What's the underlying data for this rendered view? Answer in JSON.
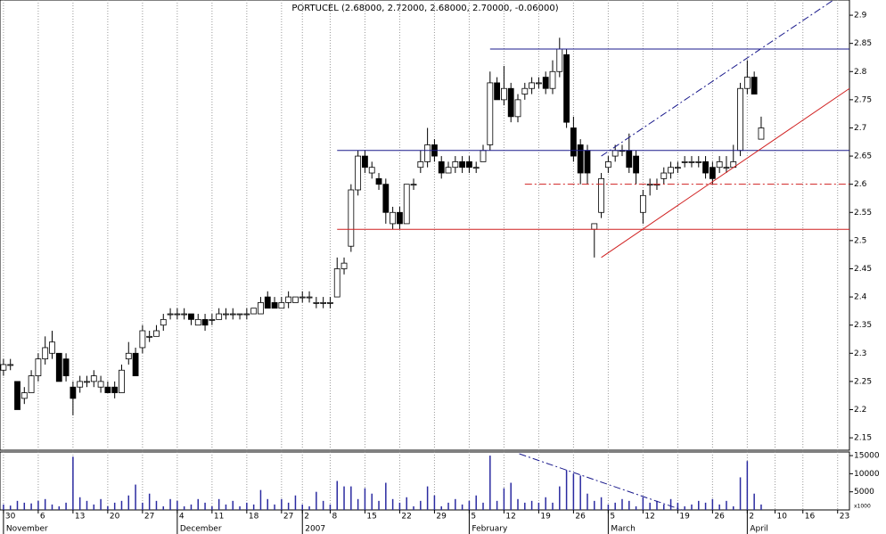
{
  "chart_data": {
    "type": "candlestick",
    "title": "PORTUCEL (2.68000, 2.72000, 2.68000, 2.70000, -0.06000)",
    "open": [
      2.27,
      2.28,
      2.25,
      2.22,
      2.23,
      2.26,
      2.29,
      2.3,
      2.3,
      2.29,
      2.24,
      2.24,
      2.25,
      2.25,
      2.24,
      2.24,
      2.24,
      2.23,
      2.29,
      2.3,
      2.31,
      2.33,
      2.33,
      2.35,
      2.37,
      2.37,
      2.37,
      2.37,
      2.35,
      2.36,
      2.36,
      2.36,
      2.37,
      2.37,
      2.37,
      2.37,
      2.37,
      2.37,
      2.4,
      2.39,
      2.38,
      2.39,
      2.39,
      2.4,
      2.4,
      2.39,
      2.39,
      2.39,
      2.4,
      2.45,
      2.49,
      2.59,
      2.65,
      2.62,
      2.61,
      2.6,
      2.53,
      2.55,
      2.53,
      2.6,
      2.63,
      2.64,
      2.67,
      2.64,
      2.62,
      2.63,
      2.64,
      2.64,
      2.63,
      2.64,
      2.67,
      2.78,
      2.75,
      2.77,
      2.72,
      2.76,
      2.77,
      2.78,
      2.79,
      2.77,
      2.8,
      2.83,
      2.7,
      2.67,
      2.66,
      2.52,
      2.55,
      2.63,
      2.65,
      2.66,
      2.66,
      2.65,
      2.55,
      2.6,
      2.6,
      2.61,
      2.62,
      2.63,
      2.64,
      2.64,
      2.64,
      2.64,
      2.63,
      2.63,
      2.63,
      2.63,
      2.66,
      2.77,
      2.79,
      2.68
    ],
    "high": [
      2.29,
      2.29,
      2.25,
      2.24,
      2.27,
      2.3,
      2.33,
      2.34,
      2.3,
      2.3,
      2.25,
      2.26,
      2.26,
      2.27,
      2.26,
      2.25,
      2.25,
      2.28,
      2.32,
      2.31,
      2.35,
      2.34,
      2.35,
      2.37,
      2.38,
      2.38,
      2.38,
      2.37,
      2.37,
      2.37,
      2.37,
      2.38,
      2.38,
      2.38,
      2.37,
      2.38,
      2.38,
      2.4,
      2.41,
      2.4,
      2.4,
      2.41,
      2.4,
      2.41,
      2.41,
      2.4,
      2.4,
      2.4,
      2.47,
      2.47,
      2.6,
      2.66,
      2.66,
      2.64,
      2.62,
      2.61,
      2.56,
      2.56,
      2.6,
      2.61,
      2.66,
      2.7,
      2.68,
      2.65,
      2.64,
      2.65,
      2.65,
      2.65,
      2.64,
      2.67,
      2.8,
      2.79,
      2.81,
      2.78,
      2.76,
      2.78,
      2.79,
      2.79,
      2.8,
      2.82,
      2.86,
      2.84,
      2.72,
      2.68,
      2.67,
      2.53,
      2.62,
      2.65,
      2.67,
      2.67,
      2.69,
      2.66,
      2.59,
      2.61,
      2.61,
      2.63,
      2.64,
      2.64,
      2.65,
      2.65,
      2.65,
      2.65,
      2.64,
      2.65,
      2.65,
      2.67,
      2.78,
      2.82,
      2.8,
      2.72
    ],
    "low": [
      2.26,
      2.27,
      2.2,
      2.21,
      2.23,
      2.25,
      2.28,
      2.29,
      2.25,
      2.25,
      2.19,
      2.23,
      2.24,
      2.24,
      2.23,
      2.23,
      2.22,
      2.23,
      2.28,
      2.26,
      2.3,
      2.32,
      2.33,
      2.34,
      2.36,
      2.36,
      2.36,
      2.35,
      2.35,
      2.34,
      2.35,
      2.36,
      2.36,
      2.36,
      2.36,
      2.36,
      2.37,
      2.37,
      2.38,
      2.38,
      2.38,
      2.38,
      2.39,
      2.39,
      2.39,
      2.38,
      2.38,
      2.38,
      2.4,
      2.44,
      2.48,
      2.58,
      2.62,
      2.61,
      2.59,
      2.53,
      2.52,
      2.52,
      2.53,
      2.59,
      2.62,
      2.63,
      2.64,
      2.61,
      2.62,
      2.62,
      2.62,
      2.62,
      2.62,
      2.64,
      2.66,
      2.75,
      2.74,
      2.71,
      2.71,
      2.75,
      2.76,
      2.77,
      2.76,
      2.76,
      2.79,
      2.7,
      2.64,
      2.6,
      2.6,
      2.47,
      2.54,
      2.62,
      2.64,
      2.65,
      2.62,
      2.6,
      2.53,
      2.58,
      2.59,
      2.6,
      2.61,
      2.62,
      2.63,
      2.63,
      2.63,
      2.61,
      2.6,
      2.62,
      2.62,
      2.63,
      2.65,
      2.76,
      2.76,
      2.68
    ],
    "close": [
      2.28,
      2.28,
      2.2,
      2.23,
      2.26,
      2.29,
      2.31,
      2.32,
      2.25,
      2.26,
      2.22,
      2.25,
      2.25,
      2.26,
      2.25,
      2.23,
      2.23,
      2.27,
      2.3,
      2.26,
      2.34,
      2.33,
      2.34,
      2.36,
      2.37,
      2.37,
      2.37,
      2.36,
      2.36,
      2.35,
      2.36,
      2.37,
      2.37,
      2.37,
      2.37,
      2.37,
      2.38,
      2.39,
      2.38,
      2.38,
      2.39,
      2.4,
      2.4,
      2.4,
      2.4,
      2.39,
      2.39,
      2.39,
      2.45,
      2.46,
      2.59,
      2.65,
      2.63,
      2.63,
      2.6,
      2.55,
      2.55,
      2.53,
      2.6,
      2.6,
      2.64,
      2.67,
      2.65,
      2.62,
      2.63,
      2.64,
      2.63,
      2.63,
      2.63,
      2.66,
      2.78,
      2.75,
      2.77,
      2.72,
      2.75,
      2.77,
      2.78,
      2.78,
      2.77,
      2.8,
      2.84,
      2.71,
      2.65,
      2.62,
      2.62,
      2.53,
      2.61,
      2.64,
      2.66,
      2.66,
      2.63,
      2.62,
      2.58,
      2.6,
      2.6,
      2.62,
      2.63,
      2.63,
      2.64,
      2.64,
      2.64,
      2.62,
      2.61,
      2.64,
      2.63,
      2.64,
      2.77,
      2.79,
      2.76,
      2.7
    ],
    "volume": [
      1500,
      1200,
      2500,
      2000,
      1800,
      2500,
      3000,
      1500,
      1000,
      2000,
      14700,
      3500,
      2500,
      1500,
      3000,
      1000,
      2000,
      2500,
      4000,
      7000,
      2000,
      4500,
      2500,
      1000,
      3000,
      2500,
      1000,
      1500,
      3000,
      2000,
      1000,
      3000,
      1500,
      2500,
      1000,
      2000,
      1500,
      5500,
      3000,
      1500,
      3000,
      2000,
      4000,
      1500,
      1000,
      5000,
      2500,
      1500,
      8000,
      6500,
      6500,
      3000,
      6000,
      4500,
      2500,
      7500,
      3000,
      2000,
      3500,
      1000,
      2500,
      6500,
      4000,
      1000,
      2000,
      3000,
      1500,
      2500,
      4000,
      2000,
      15000,
      2500,
      6000,
      7500,
      3000,
      2000,
      2500,
      2000,
      3500,
      2000,
      6500,
      11000,
      10000,
      9500,
      4500,
      2500,
      3500,
      1500,
      2000,
      3000,
      2500,
      1000,
      3500,
      2000,
      2500,
      1500,
      3000,
      2000,
      1000,
      1500,
      2500,
      2000,
      3000,
      1500,
      2500,
      1000,
      9000,
      13500,
      4500,
      1500
    ],
    "up_color": "#ffffff",
    "down_color": "#000000",
    "volume_color": "#2a2aa0",
    "xlim": [
      -0.5,
      121.7
    ],
    "xticks": [
      {
        "value": 0,
        "label": "30"
      },
      {
        "value": 5,
        "label": "6"
      },
      {
        "value": 10,
        "label": "13"
      },
      {
        "value": 15,
        "label": "20"
      },
      {
        "value": 20,
        "label": "27"
      },
      {
        "value": 25,
        "label": "4"
      },
      {
        "value": 30,
        "label": "11"
      },
      {
        "value": 35,
        "label": "18"
      },
      {
        "value": 40,
        "label": "27"
      },
      {
        "value": 43,
        "label": "2"
      },
      {
        "value": 47,
        "label": "8"
      },
      {
        "value": 52,
        "label": "15"
      },
      {
        "value": 57,
        "label": "22"
      },
      {
        "value": 62,
        "label": "29"
      },
      {
        "value": 67,
        "label": "5"
      },
      {
        "value": 72,
        "label": "12"
      },
      {
        "value": 77,
        "label": "19"
      },
      {
        "value": 82,
        "label": "26"
      },
      {
        "value": 87,
        "label": "5"
      },
      {
        "value": 92,
        "label": "12"
      },
      {
        "value": 97,
        "label": "19"
      },
      {
        "value": 102,
        "label": "26"
      },
      {
        "value": 107,
        "label": "2"
      },
      {
        "value": 111,
        "label": "10"
      },
      {
        "value": 115,
        "label": "16"
      },
      {
        "value": 120,
        "label": "23"
      }
    ],
    "month_labels": [
      {
        "value": 0,
        "label": "November"
      },
      {
        "value": 25,
        "label": "December"
      },
      {
        "value": 43,
        "label": "2007"
      },
      {
        "value": 67,
        "label": "February"
      },
      {
        "value": 87,
        "label": "March"
      },
      {
        "value": 107,
        "label": "April"
      }
    ],
    "ylim": [
      2.128,
      2.927
    ],
    "yticks": [
      2.15,
      2.2,
      2.25,
      2.3,
      2.35,
      2.4,
      2.45,
      2.5,
      2.55,
      2.6,
      2.65,
      2.7,
      2.75,
      2.8,
      2.85,
      2.9
    ],
    "volume_ylim": [
      0,
      16000
    ],
    "volume_yticks": [
      5000,
      10000,
      15000
    ],
    "volume_axis_label": "x1000",
    "grid": true,
    "trendlines": [
      {
        "color": "#1a1a8c",
        "style": "solid",
        "x": [
          70,
          121.7
        ],
        "y": [
          2.84,
          2.84
        ]
      },
      {
        "color": "#1a1a8c",
        "style": "solid",
        "x": [
          48,
          121.7
        ],
        "y": [
          2.66,
          2.66
        ]
      },
      {
        "color": "#d02020",
        "style": "solid",
        "x": [
          48,
          121.7
        ],
        "y": [
          2.52,
          2.52
        ]
      },
      {
        "color": "#d02020",
        "style": "dashdot",
        "x": [
          75,
          121.7
        ],
        "y": [
          2.6,
          2.6
        ]
      },
      {
        "color": "#d02020",
        "style": "solid",
        "x": [
          86,
          121.7
        ],
        "y": [
          2.47,
          2.77
        ]
      },
      {
        "color": "#1a1a8c",
        "style": "dashdot",
        "x": [
          86,
          119.4
        ],
        "y": [
          2.65,
          2.927
        ]
      }
    ],
    "volume_trendlines": [
      {
        "color": "#1a1a8c",
        "style": "dashdot",
        "x": [
          74.2,
          97.6
        ],
        "y": [
          15500,
          0
        ]
      }
    ]
  }
}
